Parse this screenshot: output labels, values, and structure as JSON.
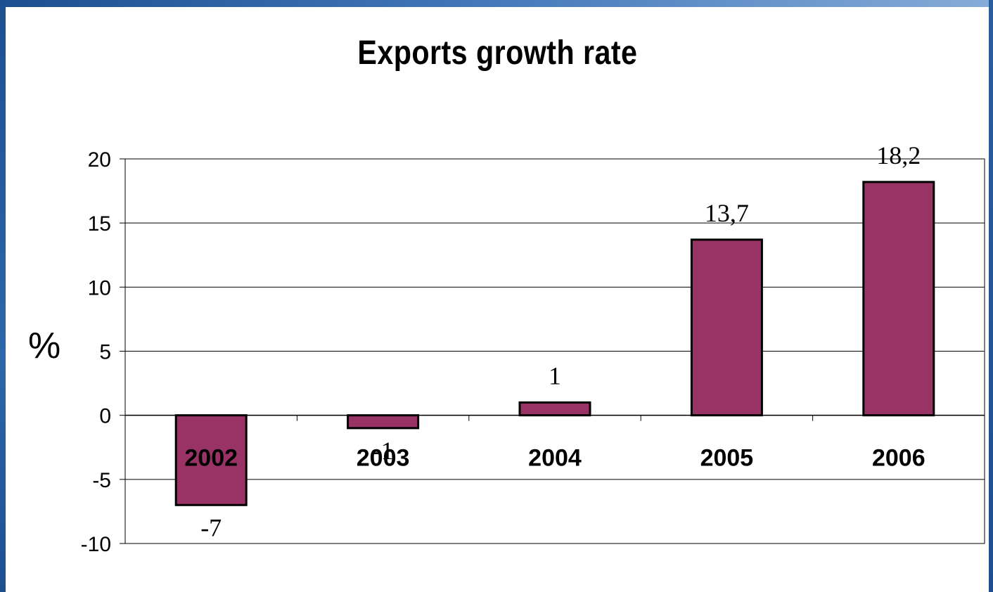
{
  "colors": {
    "bar_fill": "#993366",
    "bar_stroke": "#000000",
    "frame_top": "#1d4f8f"
  },
  "chart_data": {
    "type": "bar",
    "title": "Exports growth rate",
    "xlabel": "",
    "ylabel": "%",
    "categories": [
      "2002",
      "2003",
      "2004",
      "2005",
      "2006"
    ],
    "values": [
      -7,
      -1,
      1,
      13.7,
      18.2
    ],
    "data_labels": [
      "-7",
      "-1",
      "1",
      "13,7",
      "18,2"
    ],
    "ylim": [
      -10,
      20
    ],
    "yticks": [
      "-10",
      "-5",
      "0",
      "5",
      "10",
      "15",
      "20"
    ],
    "grid": true,
    "legend": "none"
  }
}
